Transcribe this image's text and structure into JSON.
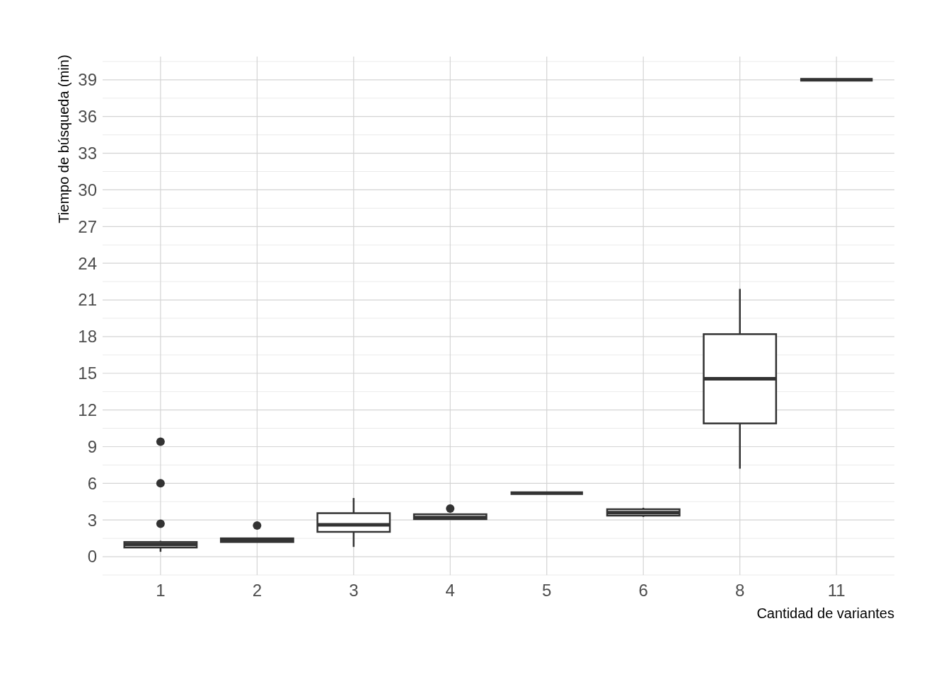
{
  "chart_data": {
    "type": "box",
    "xlabel": "Cantidad de variantes",
    "ylabel": "Tiempo de búsqueda (min)",
    "categories": [
      "1",
      "2",
      "3",
      "4",
      "5",
      "6",
      "8",
      "11"
    ],
    "boxes": [
      {
        "low": 0.4,
        "q1": 0.75,
        "median": 1.0,
        "q3": 1.2,
        "high": 1.3,
        "outliers": [
          2.7,
          6.0,
          9.4
        ]
      },
      {
        "low": 1.2,
        "q1": 1.2,
        "median": 1.35,
        "q3": 1.5,
        "high": 1.5,
        "outliers": [
          2.55
        ]
      },
      {
        "low": 0.8,
        "q1": 2.03,
        "median": 2.6,
        "q3": 3.56,
        "high": 4.8
      },
      {
        "low": 3.05,
        "q1": 3.07,
        "median": 3.2,
        "q3": 3.47,
        "high": 3.5,
        "outliers": [
          3.94
        ]
      },
      {
        "low": 5.2,
        "q1": 5.2,
        "median": 5.2,
        "q3": 5.2,
        "high": 5.2
      },
      {
        "low": 3.25,
        "q1": 3.36,
        "median": 3.6,
        "q3": 3.88,
        "high": 4.0
      },
      {
        "low": 7.2,
        "q1": 10.9,
        "median": 14.55,
        "q3": 18.2,
        "high": 21.9
      },
      {
        "low": 39,
        "q1": 39,
        "median": 39,
        "q3": 39,
        "high": 39
      }
    ],
    "color": "#333333",
    "ylim": [
      -1.5,
      40.9
    ],
    "yticks": [
      0,
      3,
      6,
      9,
      12,
      15,
      18,
      21,
      24,
      27,
      30,
      33,
      36,
      39
    ],
    "grid": true
  }
}
